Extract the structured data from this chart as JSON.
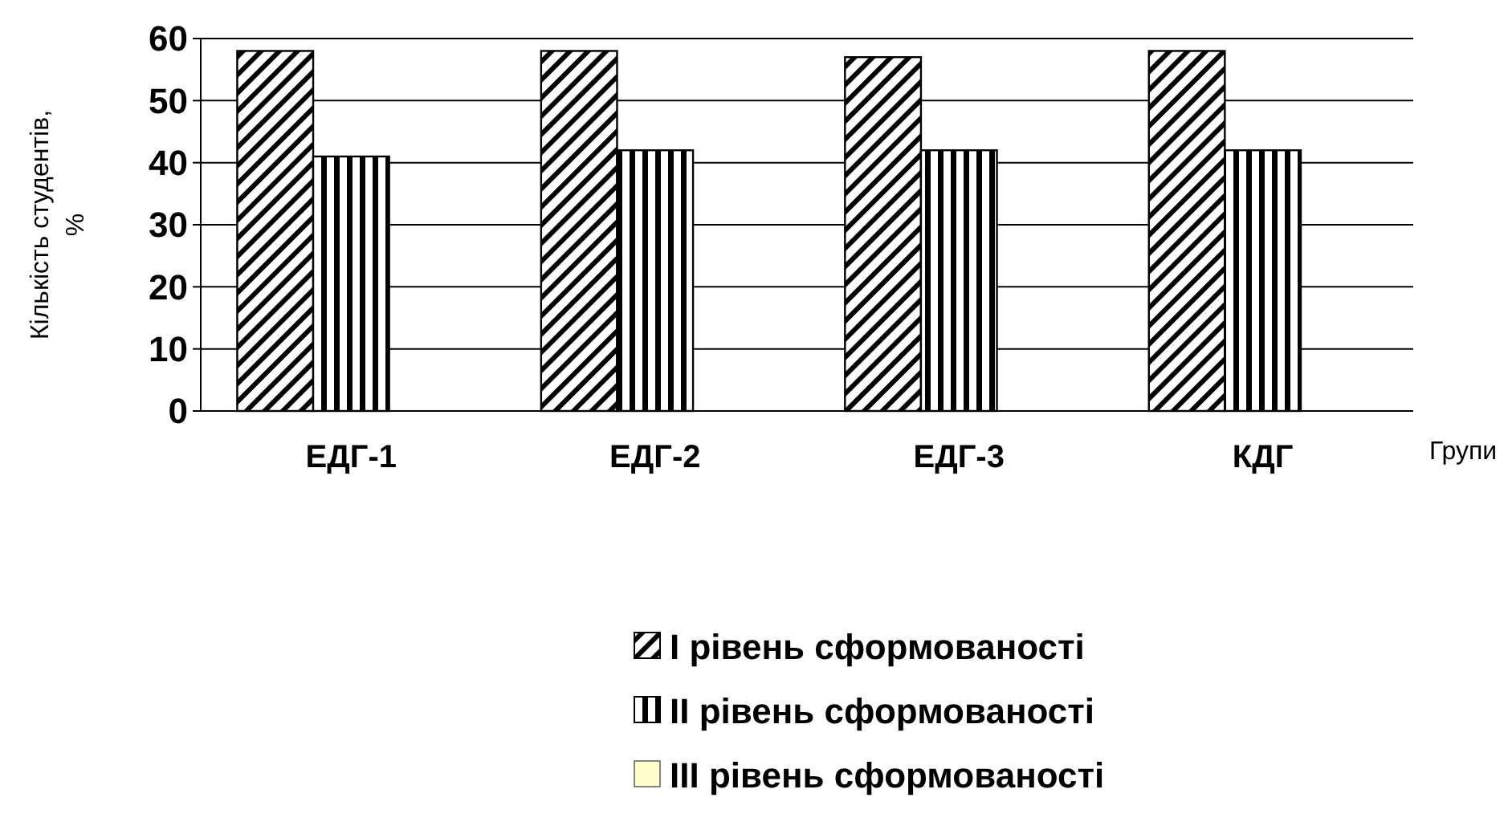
{
  "chart_data": {
    "type": "bar",
    "xlabel": "Групи",
    "ylabel": "Кількість студентів, %",
    "categories": [
      "ЕДГ-1",
      "ЕДГ-2",
      "ЕДГ-3",
      "КДГ"
    ],
    "series": [
      {
        "name": "І рівень сформованості",
        "color": "#000000",
        "values": [
          58,
          58,
          57,
          58
        ]
      },
      {
        "name": "ІІ рівень сформованості",
        "color": "#000000",
        "values": [
          41,
          42,
          42,
          42
        ]
      },
      {
        "name": "ІІІ рівень сформованості",
        "color": "#ffffcc",
        "values": [
          0,
          0,
          0,
          0
        ]
      }
    ],
    "ylim": [
      0,
      60
    ],
    "yticks": [
      0,
      10,
      20,
      30,
      40,
      50,
      60
    ],
    "grid": "y",
    "legend": "bottom"
  }
}
